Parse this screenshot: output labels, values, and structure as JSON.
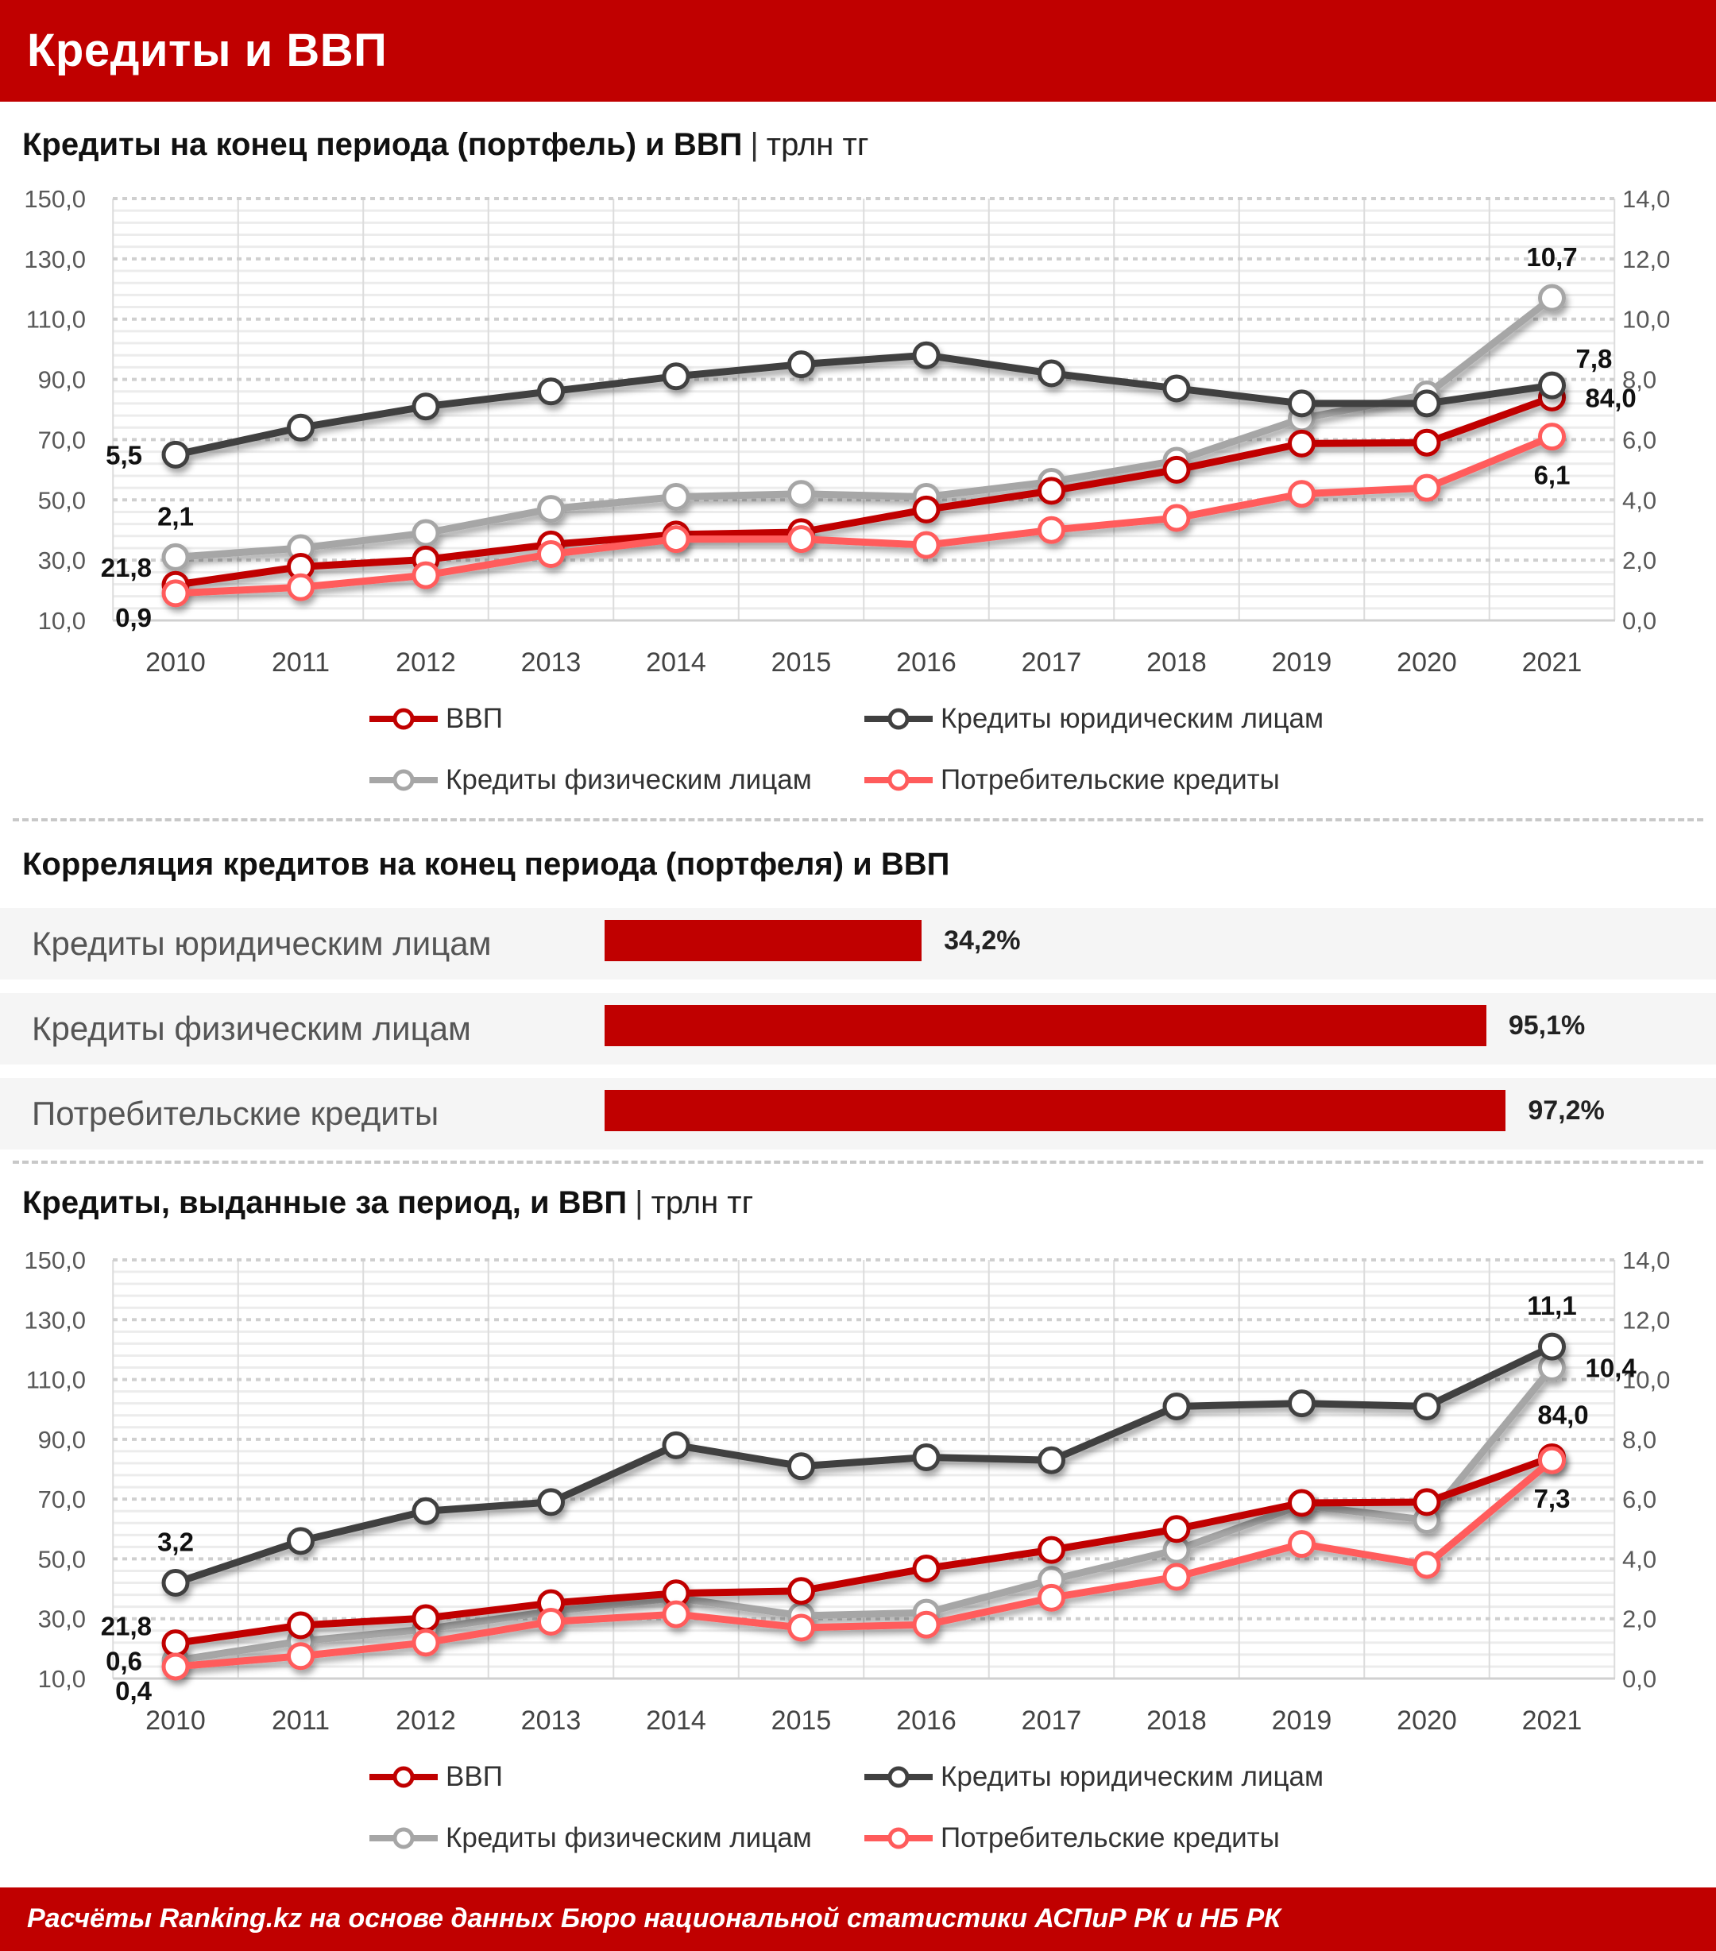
{
  "header": {
    "title": "Кредиты и ВВП"
  },
  "section1": {
    "title": "Кредиты на конец периода (портфель) и ВВП",
    "separator": "|",
    "unit": "трлн тг"
  },
  "section2": {
    "title": "Корреляция кредитов на конец периода (портфеля) и ВВП",
    "chart_data": {
      "type": "bar",
      "orientation": "horizontal",
      "categories": [
        "Кредиты юридическим лицам",
        "Кредиты физическим лицам",
        "Потребительские кредиты"
      ],
      "values": [
        34.2,
        95.1,
        97.2
      ],
      "value_labels": [
        "34,2%",
        "95,1%",
        "97,2%"
      ],
      "xlim": [
        0,
        100
      ],
      "color": "#C00000"
    }
  },
  "section3": {
    "title": "Кредиты, выданные за период, и ВВП",
    "separator": "|",
    "unit": "трлн тг"
  },
  "legend": {
    "gdp": "ВВП",
    "legal": "Кредиты юридическим лицам",
    "physical": "Кредиты физическим лицам",
    "consumer": "Потребительские кредиты"
  },
  "colors": {
    "gdp": "#C00000",
    "legal": "#404040",
    "physical": "#A6A6A6",
    "consumer": "#FF5B5B",
    "brand": "#C00000"
  },
  "chart_data": [
    {
      "type": "line",
      "title": "Кредиты на конец периода (портфель) и ВВП",
      "categories": [
        "2010",
        "2011",
        "2012",
        "2013",
        "2014",
        "2015",
        "2016",
        "2017",
        "2018",
        "2019",
        "2020",
        "2021"
      ],
      "y_left": {
        "range": [
          10,
          150
        ],
        "ticks": [
          "10,0",
          "30,0",
          "50,0",
          "70,0",
          "90,0",
          "110,0",
          "130,0",
          "150,0"
        ]
      },
      "y_right": {
        "range": [
          0,
          14
        ],
        "ticks": [
          "0,0",
          "2,0",
          "4,0",
          "6,0",
          "8,0",
          "10,0",
          "12,0",
          "14,0"
        ]
      },
      "grid": true,
      "legend_position": "bottom",
      "series": [
        {
          "key": "gdp",
          "name": "ВВП",
          "axis": "left",
          "values": [
            21.8,
            27.8,
            30.2,
            35.2,
            38.5,
            39.3,
            46.8,
            53.0,
            60.0,
            68.7,
            69.0,
            84.0
          ]
        },
        {
          "key": "legal",
          "name": "Кредиты юридическим лицам",
          "axis": "right",
          "values": [
            5.5,
            6.4,
            7.1,
            7.6,
            8.1,
            8.5,
            8.8,
            8.2,
            7.7,
            7.2,
            7.2,
            7.8
          ]
        },
        {
          "key": "physical",
          "name": "Кредиты физическим лицам",
          "axis": "right",
          "values": [
            2.1,
            2.4,
            2.9,
            3.7,
            4.1,
            4.2,
            4.1,
            4.6,
            5.3,
            6.7,
            7.5,
            10.7
          ]
        },
        {
          "key": "consumer",
          "name": "Потребительские кредиты",
          "axis": "right",
          "values": [
            0.9,
            1.1,
            1.5,
            2.2,
            2.7,
            2.7,
            2.5,
            3.0,
            3.4,
            4.2,
            4.4,
            6.1
          ]
        }
      ],
      "annotations": [
        {
          "series": "legal",
          "index": 0,
          "text": "5,5",
          "pos": "left"
        },
        {
          "series": "physical",
          "index": 0,
          "text": "2,1",
          "pos": "above"
        },
        {
          "series": "gdp",
          "index": 0,
          "text": "21,8",
          "pos": "left-above"
        },
        {
          "series": "consumer",
          "index": 0,
          "text": "0,9",
          "pos": "left-below"
        },
        {
          "series": "physical",
          "index": 11,
          "text": "10,7",
          "pos": "above"
        },
        {
          "series": "legal",
          "index": 11,
          "text": "7,8",
          "pos": "right-above"
        },
        {
          "series": "gdp",
          "index": 11,
          "text": "84,0",
          "pos": "right"
        },
        {
          "series": "consumer",
          "index": 11,
          "text": "6,1",
          "pos": "below"
        }
      ]
    },
    {
      "type": "line",
      "title": "Кредиты, выданные за период, и ВВП",
      "categories": [
        "2010",
        "2011",
        "2012",
        "2013",
        "2014",
        "2015",
        "2016",
        "2017",
        "2018",
        "2019",
        "2020",
        "2021"
      ],
      "y_left": {
        "range": [
          10,
          150
        ],
        "ticks": [
          "10,0",
          "30,0",
          "50,0",
          "70,0",
          "90,0",
          "110,0",
          "130,0",
          "150,0"
        ]
      },
      "y_right": {
        "range": [
          0,
          14
        ],
        "ticks": [
          "0,0",
          "2,0",
          "4,0",
          "6,0",
          "8,0",
          "10,0",
          "12,0",
          "14,0"
        ]
      },
      "grid": true,
      "legend_position": "bottom",
      "series": [
        {
          "key": "gdp",
          "name": "ВВП",
          "axis": "left",
          "values": [
            21.8,
            27.8,
            30.2,
            35.2,
            38.5,
            39.3,
            46.8,
            53.0,
            60.0,
            68.7,
            69.0,
            84.0
          ]
        },
        {
          "key": "legal",
          "name": "Кредиты юридическим лицам",
          "axis": "right",
          "values": [
            3.2,
            4.6,
            5.6,
            5.9,
            7.8,
            7.1,
            7.4,
            7.3,
            9.1,
            9.2,
            9.1,
            11.1
          ]
        },
        {
          "key": "physical",
          "name": "Кредиты физическим лицам",
          "axis": "right",
          "values": [
            0.6,
            1.25,
            1.65,
            2.25,
            2.7,
            2.1,
            2.2,
            3.3,
            4.3,
            5.8,
            5.3,
            10.4
          ]
        },
        {
          "key": "consumer",
          "name": "Потребительские кредиты",
          "axis": "right",
          "values": [
            0.4,
            0.75,
            1.2,
            1.9,
            2.15,
            1.7,
            1.8,
            2.7,
            3.4,
            4.5,
            3.8,
            7.3
          ]
        }
      ],
      "annotations": [
        {
          "series": "legal",
          "index": 0,
          "text": "3,2",
          "pos": "above"
        },
        {
          "series": "gdp",
          "index": 0,
          "text": "21,8",
          "pos": "left-above"
        },
        {
          "series": "physical",
          "index": 0,
          "text": "0,6",
          "pos": "left"
        },
        {
          "series": "consumer",
          "index": 0,
          "text": "0,4",
          "pos": "left-below"
        },
        {
          "series": "legal",
          "index": 11,
          "text": "11,1",
          "pos": "above"
        },
        {
          "series": "physical",
          "index": 11,
          "text": "10,4",
          "pos": "right"
        },
        {
          "series": "gdp",
          "index": 11,
          "text": "84,0",
          "pos": "above-right"
        },
        {
          "series": "consumer",
          "index": 11,
          "text": "7,3",
          "pos": "below"
        }
      ]
    }
  ],
  "footer": {
    "source": "Расчёты Ranking.kz на основе данных Бюро национальной статистики АСПиР РК и НБ РК"
  }
}
